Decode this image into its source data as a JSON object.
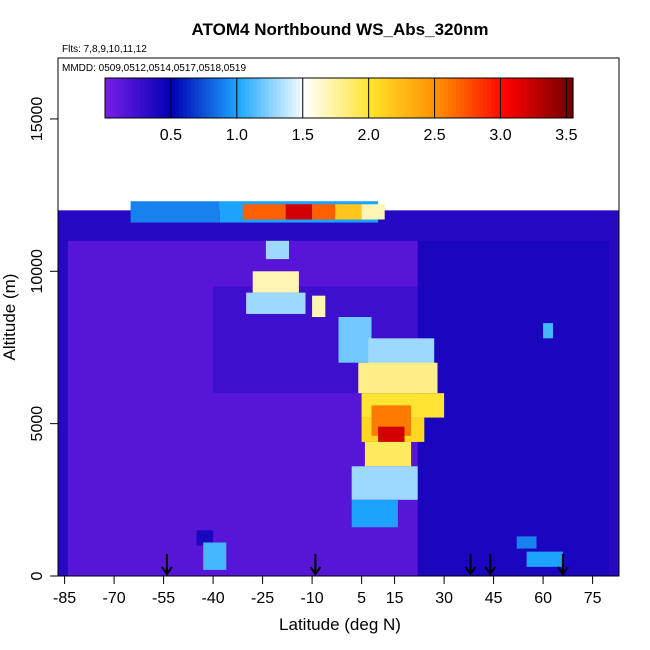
{
  "chart_data": {
    "type": "heatmap",
    "title": "ATOM4 Northbound WS_Abs_320nm",
    "flights_label": "Flts: 7,8,9,10,11,12",
    "dates_label": "MMDD: 0509,0512,0514,0517,0518,0519",
    "xlabel": "Latitude (deg N)",
    "ylabel": "Altitude (m)",
    "xlim": [
      -87,
      83
    ],
    "ylim": [
      0,
      17000
    ],
    "x_ticks": [
      "-85",
      "-70",
      "-55",
      "-40",
      "-25",
      "-10",
      "5",
      "15",
      "30",
      "45",
      "60",
      "75"
    ],
    "y_ticks": [
      "0",
      "5000",
      "10000",
      "15000"
    ],
    "colorbar": {
      "range": [
        0,
        3.55
      ],
      "ticks": [
        "0.5",
        "1.0",
        "1.5",
        "2.0",
        "2.5",
        "3.0",
        "3.5"
      ],
      "stops": [
        "#7a1ee6",
        "#0000b4",
        "#1ea8ff",
        "#ffffff",
        "#ffe228",
        "#ff8c00",
        "#ff0000",
        "#6e0000"
      ]
    },
    "arrow_latitudes": [
      -54,
      -9,
      38,
      44,
      66
    ],
    "cells": [
      {
        "lat": [
          -87,
          83
        ],
        "alt": [
          0,
          12000
        ],
        "value": 0.35
      },
      {
        "lat": [
          -84,
          80
        ],
        "alt": [
          0,
          11000
        ],
        "value": 0.15
      },
      {
        "lat": [
          -40,
          40
        ],
        "alt": [
          6000,
          9500
        ],
        "value": 0.25
      },
      {
        "lat": [
          22,
          80
        ],
        "alt": [
          0,
          11000
        ],
        "value": 0.4
      },
      {
        "lat": [
          -38,
          10
        ],
        "alt": [
          11600,
          12300
        ],
        "value": 1.0
      },
      {
        "lat": [
          -65,
          -38
        ],
        "alt": [
          11600,
          12300
        ],
        "value": 0.9
      },
      {
        "lat": [
          -31,
          -18
        ],
        "alt": [
          11700,
          12200
        ],
        "value": 2.7
      },
      {
        "lat": [
          -18,
          -10
        ],
        "alt": [
          11700,
          12200
        ],
        "value": 3.2
      },
      {
        "lat": [
          -10,
          -3
        ],
        "alt": [
          11700,
          12200
        ],
        "value": 2.7
      },
      {
        "lat": [
          -3,
          5
        ],
        "alt": [
          11700,
          12200
        ],
        "value": 2.2
      },
      {
        "lat": [
          5,
          12
        ],
        "alt": [
          11700,
          12200
        ],
        "value": 1.7
      },
      {
        "lat": [
          -24,
          -17
        ],
        "alt": [
          10400,
          11000
        ],
        "value": 1.3
      },
      {
        "lat": [
          -28,
          -14
        ],
        "alt": [
          9300,
          10000
        ],
        "value": 1.7
      },
      {
        "lat": [
          -30,
          -12
        ],
        "alt": [
          8600,
          9300
        ],
        "value": 1.3
      },
      {
        "lat": [
          -10,
          -6
        ],
        "alt": [
          8500,
          9200
        ],
        "value": 1.7
      },
      {
        "lat": [
          -2,
          8
        ],
        "alt": [
          7000,
          8500
        ],
        "value": 1.2
      },
      {
        "lat": [
          7,
          27
        ],
        "alt": [
          6800,
          7800
        ],
        "value": 1.3
      },
      {
        "lat": [
          4,
          28
        ],
        "alt": [
          6000,
          7000
        ],
        "value": 1.8
      },
      {
        "lat": [
          5,
          30
        ],
        "alt": [
          5200,
          6000
        ],
        "value": 2.0
      },
      {
        "lat": [
          5,
          24
        ],
        "alt": [
          4400,
          5200
        ],
        "value": 2.1
      },
      {
        "lat": [
          8,
          20
        ],
        "alt": [
          4600,
          5600
        ],
        "value": 2.6
      },
      {
        "lat": [
          10,
          18
        ],
        "alt": [
          4300,
          4900
        ],
        "value": 3.2
      },
      {
        "lat": [
          6,
          20
        ],
        "alt": [
          3600,
          4400
        ],
        "value": 1.9
      },
      {
        "lat": [
          2,
          22
        ],
        "alt": [
          2500,
          3600
        ],
        "value": 1.3
      },
      {
        "lat": [
          2,
          16
        ],
        "alt": [
          1600,
          2500
        ],
        "value": 1.0
      },
      {
        "lat": [
          60,
          63
        ],
        "alt": [
          7800,
          8300
        ],
        "value": 1.1
      },
      {
        "lat": [
          -45,
          -40
        ],
        "alt": [
          1000,
          1500
        ],
        "value": 0.4
      },
      {
        "lat": [
          -43,
          -36
        ],
        "alt": [
          200,
          1100
        ],
        "value": 1.1
      },
      {
        "lat": [
          55,
          66
        ],
        "alt": [
          300,
          800
        ],
        "value": 1.0
      },
      {
        "lat": [
          52,
          58
        ],
        "alt": [
          900,
          1300
        ],
        "value": 0.9
      }
    ]
  }
}
